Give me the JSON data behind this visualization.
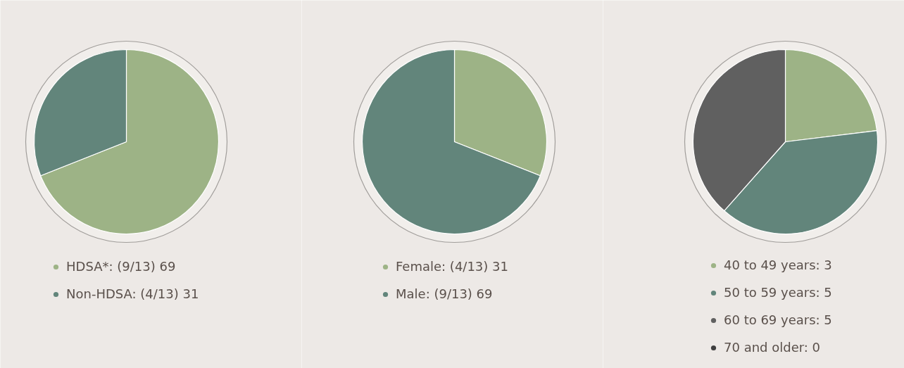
{
  "chart_data": [
    {
      "type": "pie",
      "categories": [
        "HDSA*: (9/13) 69",
        "Non-HDSA: (4/13) 31"
      ],
      "values": [
        69,
        31
      ],
      "colors": [
        "#9db386",
        "#62857b"
      ],
      "legend": "bottom"
    },
    {
      "type": "pie",
      "categories": [
        "Female: (4/13) 31",
        "Male: (9/13) 69"
      ],
      "values": [
        31,
        69
      ],
      "colors": [
        "#9db386",
        "#62857b"
      ],
      "legend": "bottom"
    },
    {
      "type": "pie",
      "categories": [
        "40 to 49 years: 3",
        "50 to 59 years: 5",
        "60 to 69 years: 5",
        "70 and older: 0"
      ],
      "values": [
        3,
        5,
        5,
        0
      ],
      "colors": [
        "#9db386",
        "#62857b",
        "#606060",
        "#3f3f3f"
      ],
      "legend": "bottom"
    }
  ]
}
